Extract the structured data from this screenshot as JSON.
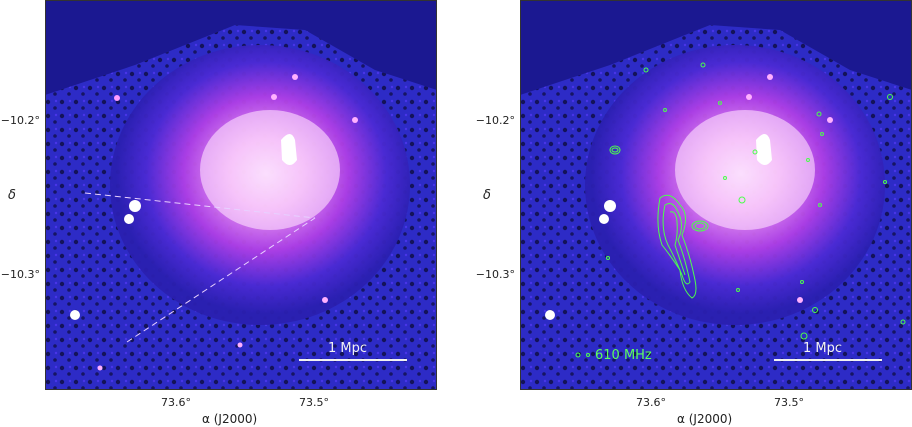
{
  "colors": {
    "background_dark": "#1b1891",
    "emission_pink": "#f3a0f5",
    "core_white": "#ffffff",
    "contour_green": "#4cff4c",
    "dashed_line": "#e8d0ff"
  },
  "left_panel": {
    "scale_bar_label": "1 Mpc",
    "yticks": [
      "−10.2°",
      "−10.3°"
    ],
    "xticks": [
      "73.6°",
      "73.5°"
    ],
    "ylabel": "δ",
    "xlabel": "α  (J2000)"
  },
  "right_panel": {
    "scale_bar_label": "1 Mpc",
    "freq_label": "610 MHz",
    "yticks": [
      "−10.2°",
      "−10.3°"
    ],
    "xticks": [
      "73.6°",
      "73.5°"
    ],
    "ylabel": "δ",
    "xlabel": "α  (J2000)"
  }
}
